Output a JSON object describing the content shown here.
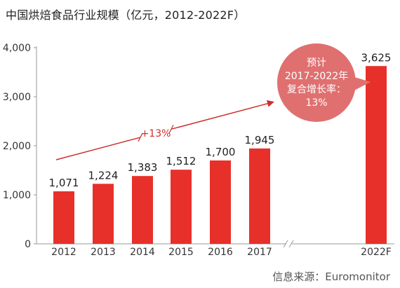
{
  "chart_data": {
    "type": "bar",
    "title": "中国烘焙食品行业规模（亿元，2012-2022F）",
    "categories": [
      "2012",
      "2013",
      "2014",
      "2015",
      "2016",
      "2017",
      "2022F"
    ],
    "values": [
      1071,
      1224,
      1383,
      1512,
      1700,
      1945,
      3625
    ],
    "value_labels": [
      "1,071",
      "1,224",
      "1,383",
      "1,512",
      "1,700",
      "1,945",
      "3,625"
    ],
    "y_ticks": [
      0,
      1000,
      2000,
      3000,
      4000
    ],
    "y_tick_labels": [
      "0",
      "1,000",
      "2,000",
      "3,000",
      "4,000"
    ],
    "ylim": [
      0,
      4000
    ],
    "xlabel": "",
    "ylabel": "",
    "grid": false,
    "legend": "none",
    "axis_break_between": [
      "2017",
      "2022F"
    ],
    "annotations": {
      "trend_label": "+13%",
      "callout_lines": [
        "预计",
        "2017-2022年",
        "复合增长率：",
        "13%"
      ]
    },
    "source": "信息来源：Euromonitor"
  },
  "colors": {
    "bar": "#e8302a",
    "arrow": "#c9302c",
    "callout": "#e07070",
    "callout_text": "#ffffff",
    "axis": "#999999",
    "text": "#333333"
  }
}
